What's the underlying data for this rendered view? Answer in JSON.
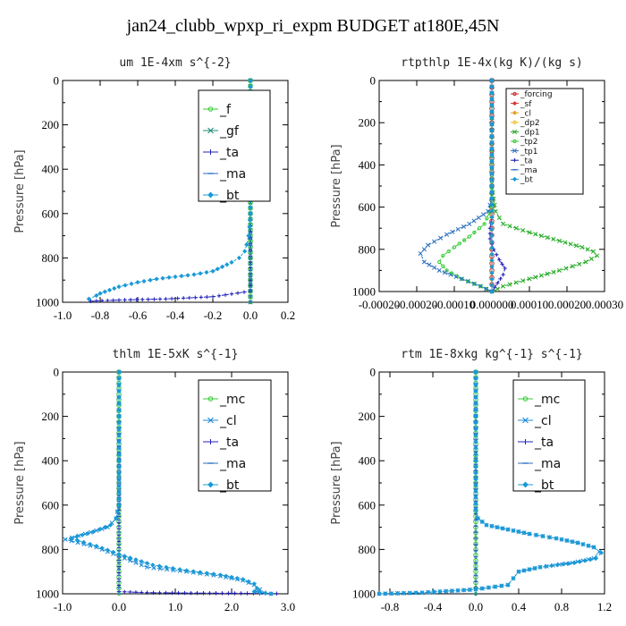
{
  "title": "jan24_clubb_wpxp_ri_expm  BUDGET at180E,45N",
  "chart_data": [
    {
      "type": "line",
      "title": "um  1E-4xm s^{-2}",
      "ylabel": "Pressure [hPa]",
      "xlim": [
        -1.0,
        0.2
      ],
      "ylim": [
        0,
        1000
      ],
      "xticks": [
        -1.0,
        -0.8,
        -0.6,
        -0.4,
        -0.2,
        0.0,
        0.2
      ],
      "xtick_labels": [
        "-1.0",
        "-0.8",
        "-0.6",
        "-0.4",
        "-0.2",
        "0.0",
        "0.2"
      ],
      "yticks": [
        0,
        200,
        400,
        600,
        800,
        1000
      ],
      "ytick_labels": [
        "0",
        "200",
        "400",
        "600",
        "800",
        "1000"
      ],
      "legend_position": "top-right",
      "legend_font": 14,
      "series": [
        {
          "name": "_f",
          "color": "#33cc33",
          "marker": "circle",
          "x": [
            0,
            0,
            0,
            0,
            0,
            0,
            0,
            0,
            0,
            0,
            0
          ],
          "y": [
            0,
            100,
            200,
            300,
            400,
            500,
            600,
            700,
            800,
            900,
            1000
          ]
        },
        {
          "name": "_gf",
          "color": "#1a8c7a",
          "marker": "x",
          "x": [
            0,
            0,
            0,
            0,
            0,
            0,
            0,
            0,
            0,
            0,
            0
          ],
          "y": [
            0,
            100,
            200,
            300,
            400,
            500,
            600,
            700,
            800,
            900,
            1000
          ]
        },
        {
          "name": "_ta",
          "color": "#2222bb",
          "marker": "plus",
          "x": [
            0,
            0,
            0,
            0,
            0,
            -0.2,
            -0.45,
            -0.7,
            -0.85
          ],
          "y": [
            0,
            200,
            600,
            900,
            950,
            975,
            985,
            990,
            995
          ]
        },
        {
          "name": "_ma",
          "color": "#2a6fbf",
          "marker": "dash",
          "x": [
            0,
            0,
            0,
            0,
            0,
            0
          ],
          "y": [
            0,
            200,
            400,
            600,
            800,
            1000
          ]
        },
        {
          "name": "_bt",
          "color": "#1a9ad6",
          "marker": "diamond",
          "x": [
            0,
            0,
            0,
            0,
            -0.005,
            -0.01,
            -0.02,
            -0.03,
            -0.06,
            -0.1,
            -0.15,
            -0.2,
            -0.3,
            -0.4,
            -0.5,
            -0.6,
            -0.7,
            -0.75,
            -0.8,
            -0.82,
            -0.86
          ],
          "y": [
            0,
            200,
            400,
            600,
            660,
            700,
            740,
            770,
            800,
            820,
            840,
            860,
            875,
            885,
            895,
            910,
            930,
            945,
            960,
            970,
            985
          ]
        }
      ]
    },
    {
      "type": "line",
      "title": "rtpthlp  1E-4x(kg K)/(kg s)",
      "ylabel": "Pressure [hPa]",
      "xlim": [
        -0.0003,
        0.0003
      ],
      "ylim": [
        0,
        1000
      ],
      "xticks": [
        -0.0002,
        -0.0001,
        0.0,
        0.0001,
        0.0002,
        0.0003
      ],
      "xtick_labels": [
        "-0.00020",
        "-0.00010",
        "0.000000",
        "0.00010",
        "0.00020",
        "0.00030"
      ],
      "extra_xtick_label": "-0.00020",
      "yticks": [
        0,
        200,
        400,
        600,
        800,
        1000
      ],
      "ytick_labels": [
        "0",
        "200",
        "400",
        "600",
        "800",
        "1000"
      ],
      "legend_position": "top-right",
      "legend_font": 9,
      "series": [
        {
          "name": "_forcing",
          "color": "#cc2222",
          "marker": "circle",
          "x": [
            0,
            0,
            0,
            0,
            0,
            0,
            0,
            0,
            0,
            0,
            0
          ],
          "y": [
            0,
            100,
            200,
            300,
            400,
            500,
            600,
            700,
            800,
            900,
            1000
          ]
        },
        {
          "name": "_sf",
          "color": "#dd3333",
          "marker": "star",
          "x": [
            0,
            0,
            0
          ],
          "y": [
            0,
            500,
            1000
          ]
        },
        {
          "name": "_cl",
          "color": "#e8a020",
          "marker": "star",
          "x": [
            0,
            0,
            0
          ],
          "y": [
            0,
            500,
            1000
          ]
        },
        {
          "name": "_dp2",
          "color": "#f0c020",
          "marker": "circle",
          "x": [
            0,
            0,
            0
          ],
          "y": [
            0,
            500,
            1000
          ]
        },
        {
          "name": "_dp1",
          "color": "#22aa22",
          "marker": "x",
          "x": [
            0,
            0,
            1e-05,
            3e-05,
            0.0001,
            0.00018,
            0.00024,
            0.00027,
            0.00028,
            0.00025,
            0.00018,
            0.0001,
            3e-05,
            0.0
          ],
          "y": [
            0,
            500,
            620,
            680,
            720,
            760,
            790,
            810,
            830,
            860,
            900,
            940,
            975,
            1000
          ]
        },
        {
          "name": "_tp2",
          "color": "#33cc33",
          "marker": "circle",
          "x": [
            0,
            0,
            -2e-05,
            -6e-05,
            -0.0001,
            -0.00013,
            -0.00014,
            -0.00012,
            -8e-05,
            -3e-05,
            0.0
          ],
          "y": [
            0,
            600,
            680,
            740,
            790,
            830,
            860,
            900,
            940,
            975,
            1000
          ]
        },
        {
          "name": "_tp1",
          "color": "#2a6fbf",
          "marker": "x",
          "x": [
            0,
            0,
            -1e-05,
            -6e-05,
            -0.00012,
            -0.00017,
            -0.00019,
            -0.00018,
            -0.00014,
            -8e-05,
            -3e-05,
            0.0
          ],
          "y": [
            0,
            560,
            620,
            680,
            730,
            780,
            820,
            860,
            900,
            940,
            975,
            1000
          ]
        },
        {
          "name": "_ta",
          "color": "#2222bb",
          "marker": "plus",
          "x": [
            0,
            0,
            -5e-06,
            -5e-06,
            5e-06,
            2e-05,
            3.5e-05,
            3e-05,
            1.5e-05,
            0.0
          ],
          "y": [
            0,
            650,
            700,
            750,
            800,
            850,
            890,
            920,
            960,
            1000
          ]
        },
        {
          "name": "_ma",
          "color": "#2a6fbf",
          "marker": "dash",
          "x": [
            0,
            0,
            0
          ],
          "y": [
            0,
            500,
            1000
          ]
        },
        {
          "name": "_bt",
          "color": "#1a9ad6",
          "marker": "diamond",
          "x": [
            0,
            0,
            0
          ],
          "y": [
            0,
            500,
            1000
          ]
        }
      ]
    },
    {
      "type": "line",
      "title": "thlm  1E-5xK s^{-1}",
      "ylabel": "Pressure [hPa]",
      "xlim": [
        -1.0,
        3.0
      ],
      "ylim": [
        0,
        1000
      ],
      "xticks": [
        -1.0,
        0.0,
        1.0,
        2.0,
        3.0
      ],
      "xtick_labels": [
        "-1.0",
        "0.0",
        "1.0",
        "2.0",
        "3.0"
      ],
      "yticks": [
        0,
        200,
        400,
        600,
        800,
        1000
      ],
      "ytick_labels": [
        "0",
        "200",
        "400",
        "600",
        "800",
        "1000"
      ],
      "legend_position": "top-right",
      "legend_font": 14,
      "series": [
        {
          "name": "_mc",
          "color": "#33cc33",
          "marker": "circle",
          "x": [
            0,
            0,
            0,
            0,
            0,
            0,
            0,
            0,
            0,
            0,
            0
          ],
          "y": [
            0,
            100,
            200,
            300,
            400,
            500,
            600,
            700,
            800,
            900,
            1000
          ]
        },
        {
          "name": "_cl",
          "color": "#1a8ad6",
          "marker": "x",
          "x": [
            0,
            0,
            -0.05,
            -0.2,
            -0.6,
            -0.95,
            -0.4,
            0.1,
            0.5,
            1.2,
            1.8,
            2.2,
            2.4,
            2.5,
            2.45,
            2.7
          ],
          "y": [
            0,
            600,
            660,
            700,
            730,
            755,
            790,
            840,
            880,
            900,
            920,
            940,
            960,
            980,
            990,
            1000
          ]
        },
        {
          "name": "_ta",
          "color": "#2222bb",
          "marker": "plus",
          "x": [
            0,
            0,
            0.5,
            1.5,
            2.5,
            2.8
          ],
          "y": [
            0,
            990,
            995,
            997,
            998,
            999
          ]
        },
        {
          "name": "_ma",
          "color": "#2a6fbf",
          "marker": "dash",
          "x": [
            0,
            0,
            0
          ],
          "y": [
            0,
            500,
            1000
          ]
        },
        {
          "name": "_bt",
          "color": "#1a9ad6",
          "marker": "diamond",
          "x": [
            0,
            0,
            0,
            0,
            -0.05,
            -0.15,
            -0.45,
            -0.85,
            -0.4,
            0.1,
            0.6,
            1.2,
            1.8,
            2.2,
            2.4,
            2.45,
            2.4,
            2.7
          ],
          "y": [
            0,
            200,
            400,
            600,
            660,
            690,
            720,
            750,
            785,
            830,
            870,
            895,
            915,
            935,
            955,
            975,
            990,
            1000
          ]
        }
      ]
    },
    {
      "type": "line",
      "title": "rtm  1E-8xkg kg^{-1} s^{-1}",
      "ylabel": "Pressure [hPa]",
      "xlim": [
        -0.9,
        1.2
      ],
      "ylim": [
        0,
        1000
      ],
      "xticks": [
        -0.8,
        -0.4,
        0.0,
        0.4,
        0.8,
        1.2
      ],
      "xtick_labels": [
        "-0.8",
        "-0.4",
        "0.0",
        "0.4",
        "0.8",
        "1.2"
      ],
      "yticks": [
        0,
        200,
        400,
        600,
        800,
        1000
      ],
      "ytick_labels": [
        "0",
        "200",
        "400",
        "600",
        "800",
        "1000"
      ],
      "legend_position": "top-right",
      "legend_font": 14,
      "series": [
        {
          "name": "_mc",
          "color": "#33cc33",
          "marker": "circle",
          "x": [
            0,
            0,
            0,
            0,
            0,
            0,
            0,
            0,
            0,
            0,
            0
          ],
          "y": [
            0,
            100,
            200,
            300,
            400,
            500,
            600,
            700,
            800,
            900,
            1000
          ]
        },
        {
          "name": "_cl",
          "color": "#1a8ad6",
          "marker": "x",
          "x": [
            0,
            0,
            0.02,
            0.1,
            0.3,
            0.5,
            0.75,
            0.95,
            1.1,
            1.15,
            1.1,
            0.9,
            0.6,
            0.4,
            0.35,
            0.3,
            0.0,
            -0.5,
            -0.9
          ],
          "y": [
            0,
            620,
            660,
            690,
            710,
            730,
            750,
            770,
            790,
            810,
            840,
            860,
            880,
            900,
            930,
            960,
            980,
            995,
            1000
          ]
        },
        {
          "name": "_ta",
          "color": "#2222bb",
          "marker": "plus",
          "x": [
            0,
            0,
            0
          ],
          "y": [
            0,
            500,
            1000
          ]
        },
        {
          "name": "_ma",
          "color": "#2a6fbf",
          "marker": "dash",
          "x": [
            0,
            0,
            0
          ],
          "y": [
            0,
            500,
            1000
          ]
        },
        {
          "name": "_bt",
          "color": "#1a9ad6",
          "marker": "diamond",
          "x": [
            0,
            0,
            0,
            0.02,
            0.1,
            0.3,
            0.5,
            0.75,
            0.95,
            1.1,
            1.17,
            1.12,
            0.92,
            0.6,
            0.4,
            0.35,
            0.3,
            0.0,
            -0.5,
            -0.9
          ],
          "y": [
            0,
            400,
            620,
            660,
            690,
            710,
            730,
            750,
            770,
            790,
            815,
            840,
            860,
            880,
            900,
            930,
            960,
            980,
            995,
            1000
          ]
        }
      ]
    }
  ]
}
